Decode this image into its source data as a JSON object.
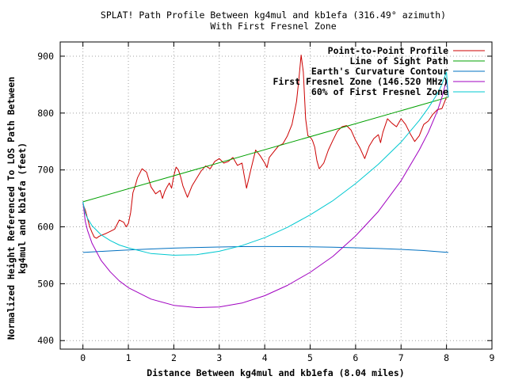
{
  "chart_data": {
    "type": "line",
    "title": "SPLAT! Path Profile Between kg4mul and kb1efa (316.49° azimuth)",
    "subtitle": "With First Fresnel Zone",
    "xlabel": "Distance Between kg4mul and kb1efa (8.04 miles)",
    "ylabel_line1": "Normalized Height Referenced To LOS Path Between",
    "ylabel_line2": "kg4mul and kb1efa (feet)",
    "xlim": [
      -0.5,
      9
    ],
    "ylim": [
      385,
      925
    ],
    "xticks": [
      0,
      1,
      2,
      3,
      4,
      5,
      6,
      7,
      8,
      9
    ],
    "yticks": [
      400,
      500,
      600,
      700,
      800,
      900
    ],
    "grid": true,
    "legend_position": "top-right",
    "series": [
      {
        "name": "Point-to-Point Profile",
        "color": "#cc0000",
        "x": [
          0,
          0.05,
          0.1,
          0.15,
          0.2,
          0.25,
          0.3,
          0.35,
          0.4,
          0.5,
          0.6,
          0.7,
          0.8,
          0.9,
          0.95,
          1.0,
          1.05,
          1.1,
          1.15,
          1.2,
          1.3,
          1.4,
          1.5,
          1.6,
          1.7,
          1.75,
          1.8,
          1.85,
          1.9,
          1.95,
          2.0,
          2.05,
          2.1,
          2.15,
          2.2,
          2.3,
          2.4,
          2.5,
          2.6,
          2.7,
          2.8,
          2.9,
          3.0,
          3.1,
          3.2,
          3.3,
          3.4,
          3.5,
          3.55,
          3.6,
          3.7,
          3.8,
          3.9,
          4.0,
          4.05,
          4.1,
          4.2,
          4.3,
          4.4,
          4.5,
          4.6,
          4.7,
          4.75,
          4.8,
          4.85,
          4.9,
          4.95,
          5.0,
          5.05,
          5.1,
          5.15,
          5.2,
          5.3,
          5.4,
          5.5,
          5.6,
          5.7,
          5.8,
          5.9,
          6.0,
          6.1,
          6.2,
          6.3,
          6.4,
          6.5,
          6.55,
          6.6,
          6.7,
          6.8,
          6.9,
          7.0,
          7.1,
          7.2,
          7.3,
          7.4,
          7.5,
          7.6,
          7.7,
          7.8,
          7.9,
          8.0
        ],
        "values": [
          640,
          630,
          615,
          600,
          590,
          582,
          580,
          583,
          585,
          588,
          592,
          596,
          612,
          608,
          600,
          606,
          625,
          660,
          672,
          686,
          702,
          696,
          670,
          658,
          664,
          650,
          662,
          670,
          677,
          668,
          690,
          705,
          700,
          688,
          672,
          652,
          672,
          685,
          698,
          707,
          702,
          715,
          720,
          712,
          715,
          722,
          708,
          712,
          690,
          668,
          702,
          735,
          725,
          712,
          704,
          722,
          732,
          742,
          746,
          760,
          780,
          820,
          858,
          902,
          872,
          790,
          760,
          758,
          752,
          740,
          716,
          702,
          712,
          735,
          752,
          768,
          776,
          778,
          770,
          752,
          738,
          720,
          742,
          755,
          762,
          748,
          766,
          790,
          782,
          776,
          790,
          780,
          764,
          750,
          760,
          780,
          786,
          798,
          806,
          808,
          828
        ]
      },
      {
        "name": "Line of Sight Path",
        "color": "#00a000",
        "x": [
          0,
          8.04
        ],
        "values": [
          644,
          828
        ]
      },
      {
        "name": "Earth's Curvature Contour",
        "color": "#0070c0",
        "x": [
          0,
          0.5,
          1,
          1.5,
          2,
          2.5,
          3,
          3.5,
          4,
          4.5,
          5,
          5.5,
          6,
          6.5,
          7,
          7.5,
          8.04
        ],
        "values": [
          555,
          557.3,
          559.4,
          561.1,
          562.6,
          563.7,
          564.6,
          565.2,
          565.4,
          565.3,
          564.9,
          564.2,
          563.2,
          561.9,
          560.3,
          558.3,
          555
        ]
      },
      {
        "name": "First Fresnel Zone (146.520 MHz)",
        "color": "#a000c0",
        "x": [
          0,
          0.05,
          0.1,
          0.2,
          0.4,
          0.6,
          0.8,
          1.0,
          1.5,
          2.0,
          2.5,
          3.0,
          3.5,
          4.0,
          4.5,
          5.0,
          5.5,
          6.0,
          6.5,
          7.0,
          7.4,
          7.6,
          7.8,
          7.9,
          8.0,
          8.04
        ],
        "values": [
          644,
          610,
          594,
          571,
          541,
          521,
          505,
          493,
          473,
          462,
          458,
          459,
          466,
          479,
          497,
          520,
          548,
          584,
          627,
          681,
          735,
          766,
          804,
          828,
          858,
          828
        ]
      },
      {
        "name": "60% of First Fresnel Zone",
        "color": "#00c8d0",
        "x": [
          0,
          0.05,
          0.1,
          0.2,
          0.4,
          0.6,
          0.8,
          1.0,
          1.5,
          2.0,
          2.5,
          3.0,
          3.5,
          4.0,
          4.5,
          5.0,
          5.5,
          6.0,
          6.5,
          7.0,
          7.4,
          7.6,
          7.8,
          7.9,
          8.0,
          8.04
        ],
        "values": [
          644,
          624,
          615,
          602,
          586,
          576,
          568,
          563,
          553,
          550,
          551,
          557,
          567,
          581,
          599,
          621,
          646,
          676,
          710,
          749,
          787,
          809,
          834,
          851,
          872,
          828
        ]
      }
    ]
  }
}
